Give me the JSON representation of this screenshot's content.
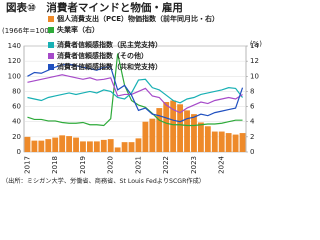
{
  "chart_data": {
    "type": "combo",
    "title": "図表⑩　消費者マインドと物価・雇用",
    "y_label": "(1966年=100)",
    "y2_label": "(%)",
    "source": "（出所：ミシガン大学、労働省、商務省、St Louis FedよりSCGR作成）",
    "categories": [
      "2017",
      null,
      null,
      null,
      "2018",
      null,
      null,
      null,
      "2019",
      null,
      null,
      null,
      "2020",
      null,
      null,
      null,
      "2021",
      null,
      null,
      null,
      "2022",
      null,
      null,
      null,
      "2023",
      null,
      null,
      null,
      "2024",
      null,
      null,
      null
    ],
    "ylim": [
      0,
      140
    ],
    "yticks": [
      0,
      20,
      40,
      60,
      80,
      100,
      120,
      140
    ],
    "y2lim": [
      0,
      14
    ],
    "y2ticks": [
      0,
      2,
      4,
      6,
      8,
      10,
      12,
      14
    ],
    "series": [
      {
        "name": "個人消費支出（PCE）物価指数（前年同月比・右）",
        "color": "#ee8a2a",
        "type": "bar",
        "axis": "y2",
        "values": [
          2.0,
          1.5,
          1.5,
          1.7,
          1.9,
          2.2,
          2.1,
          1.9,
          1.4,
          1.4,
          1.4,
          1.6,
          1.7,
          0.6,
          1.3,
          1.3,
          1.8,
          4.0,
          4.4,
          5.8,
          6.6,
          6.8,
          6.3,
          5.5,
          5.0,
          3.9,
          3.4,
          2.7,
          2.7,
          2.5,
          2.3,
          2.5
        ]
      },
      {
        "name": "失業率（右）",
        "color": "#2eaa3a",
        "type": "line",
        "axis": "y2",
        "values": [
          4.6,
          4.3,
          4.3,
          4.1,
          4.1,
          3.9,
          3.8,
          3.8,
          3.9,
          3.6,
          3.6,
          3.5,
          4.4,
          13.0,
          8.8,
          6.8,
          6.2,
          5.9,
          5.1,
          4.2,
          3.8,
          3.6,
          3.6,
          3.5,
          3.5,
          3.6,
          3.7,
          3.7,
          3.8,
          4.0,
          4.2,
          4.2
        ]
      },
      {
        "name": "消費者信頼感指数（民主党支持）",
        "color": "#18b0b4",
        "type": "line",
        "values": [
          72,
          70,
          68,
          72,
          74,
          76,
          78,
          76,
          78,
          80,
          78,
          82,
          80,
          72,
          70,
          78,
          95,
          96,
          85,
          82,
          75,
          68,
          65,
          70,
          72,
          76,
          78,
          80,
          82,
          85,
          84,
          72
        ]
      },
      {
        "name": "消費者信頼感指数（その他）",
        "color": "#a64ac9",
        "type": "line",
        "values": [
          92,
          94,
          96,
          98,
          100,
          102,
          100,
          98,
          96,
          98,
          95,
          96,
          98,
          74,
          76,
          76,
          80,
          84,
          74,
          72,
          62,
          56,
          52,
          58,
          62,
          66,
          64,
          68,
          70,
          72,
          70,
          76
        ]
      },
      {
        "name": "消費者信頼感指数（共和党支持）",
        "color": "#2050c0",
        "type": "line",
        "values": [
          100,
          105,
          104,
          108,
          112,
          115,
          116,
          114,
          112,
          110,
          108,
          112,
          112,
          82,
          88,
          75,
          55,
          58,
          50,
          48,
          45,
          42,
          40,
          44,
          46,
          50,
          48,
          52,
          54,
          56,
          58,
          85
        ]
      }
    ]
  }
}
